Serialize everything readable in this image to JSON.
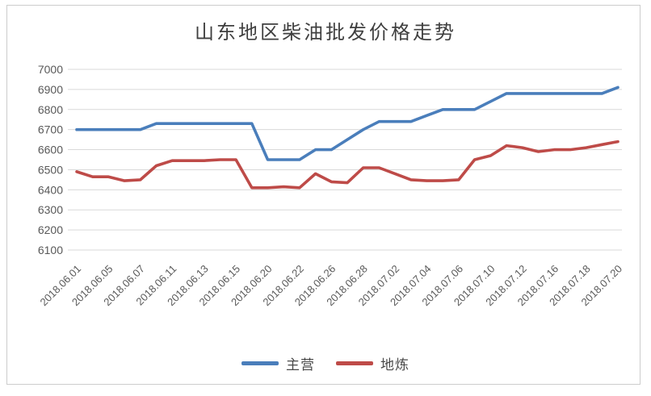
{
  "title": "山东地区柴油批发价格走势",
  "legend": {
    "items": [
      {
        "label": "主营",
        "color": "#4a7ebb"
      },
      {
        "label": "地炼",
        "color": "#be4b48"
      }
    ]
  },
  "colors": {
    "gridline": "#d9d9d9",
    "axis_text": "#595959",
    "title_text": "#3f3f3f",
    "frame_border": "#cccccc",
    "background": "#ffffff"
  },
  "chart_data": {
    "type": "line",
    "title": "山东地区柴油批发价格走势",
    "xlabel": "",
    "ylabel": "",
    "ylim": [
      6100,
      7000
    ],
    "ytick_step": 100,
    "y_tick_labels": [
      "7000",
      "6900",
      "6800",
      "6700",
      "6600",
      "6500",
      "6400",
      "6300",
      "6200",
      "6100"
    ],
    "x_tick_labels": [
      "2018.06.01",
      "2018.06.05",
      "2018.06.07",
      "2018.06.11",
      "2018.06.13",
      "2018.06.15",
      "2018.06.20",
      "2018.06.22",
      "2018.06.26",
      "2018.06.28",
      "2018.07.02",
      "2018.07.04",
      "2018.07.06",
      "2018.07.10",
      "2018.07.12",
      "2018.07.16",
      "2018.07.18",
      "2018.07.20"
    ],
    "x_label_every_nth_point": 2,
    "grid": true,
    "legend_position": "bottom",
    "series": [
      {
        "name": "主营",
        "color": "#4a7ebb",
        "values": [
          6700,
          6700,
          6700,
          6700,
          6700,
          6730,
          6730,
          6730,
          6730,
          6730,
          6730,
          6730,
          6550,
          6550,
          6550,
          6600,
          6600,
          6650,
          6700,
          6740,
          6740,
          6740,
          6770,
          6800,
          6800,
          6800,
          6840,
          6880,
          6880,
          6880,
          6880,
          6880,
          6880,
          6880,
          6910
        ]
      },
      {
        "name": "地炼",
        "color": "#be4b48",
        "values": [
          6490,
          6465,
          6465,
          6445,
          6450,
          6520,
          6545,
          6545,
          6545,
          6550,
          6550,
          6410,
          6410,
          6415,
          6410,
          6480,
          6440,
          6435,
          6510,
          6510,
          6480,
          6450,
          6445,
          6445,
          6450,
          6550,
          6570,
          6620,
          6610,
          6590,
          6600,
          6600,
          6610,
          6625,
          6640
        ]
      }
    ]
  }
}
